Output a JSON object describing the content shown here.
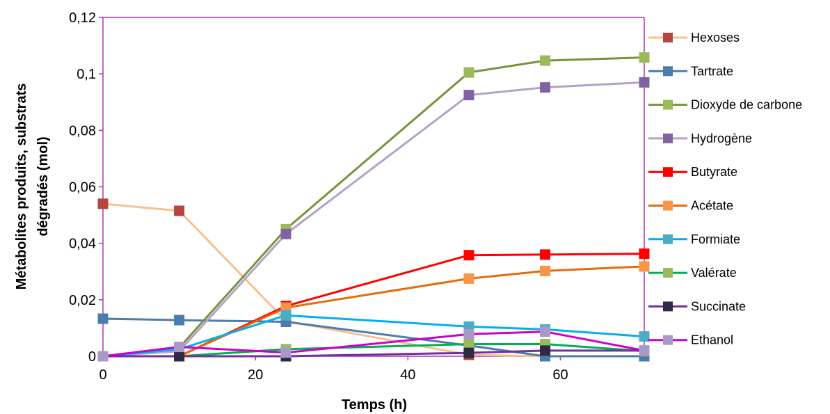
{
  "chart_data": {
    "type": "line",
    "title": "",
    "xlabel": "Temps (h)",
    "ylabel": "Métabolites produits, substrats dégradés (mol)",
    "ylabel_lines": [
      "Métabolites produits, substrats",
      "dégradés (mol)"
    ],
    "xlim": [
      0,
      71
    ],
    "ylim": [
      0,
      0.12
    ],
    "x_ticks": [
      0,
      20,
      40,
      60
    ],
    "x_tick_labels": [
      "0",
      "20",
      "40",
      "60"
    ],
    "y_ticks": [
      0,
      0.02,
      0.04,
      0.06,
      0.08,
      0.1,
      0.12
    ],
    "y_tick_labels": [
      "0",
      "0,02",
      "0,04",
      "0,06",
      "0,08",
      "0,1",
      "0,12"
    ],
    "grid": false,
    "legend_position": "right",
    "x": [
      0,
      10,
      24,
      48,
      58,
      71
    ],
    "series": [
      {
        "name": "Hexoses",
        "line_color": "#F9C08F",
        "marker_color": "#B5453F",
        "values": [
          0.054,
          0.0515,
          0.0125,
          0.0005,
          0,
          0
        ]
      },
      {
        "name": "Tartrate",
        "line_color": "#4A7DAC",
        "marker_color": "#4A7DAC",
        "values": [
          0.0133,
          0.0128,
          0.0122,
          0.0038,
          0,
          0
        ]
      },
      {
        "name": "Dioxyde de carbone",
        "line_color": "#77933C",
        "marker_color": "#9BBB59",
        "values": [
          0,
          0.003,
          0.045,
          0.1005,
          0.1047,
          0.1058
        ]
      },
      {
        "name": "Hydrogène",
        "line_color": "#B3A2C7",
        "marker_color": "#8064A2",
        "values": [
          0,
          0.0018,
          0.0433,
          0.0925,
          0.0952,
          0.097
        ]
      },
      {
        "name": "Butyrate",
        "line_color": "#FF0000",
        "marker_color": "#FF0000",
        "values": [
          0,
          0,
          0.0178,
          0.0358,
          0.036,
          0.0363
        ]
      },
      {
        "name": "Acétate",
        "line_color": "#E46C0A",
        "marker_color": "#F79646",
        "values": [
          0,
          0,
          0.0172,
          0.0275,
          0.0302,
          0.0318
        ]
      },
      {
        "name": "Formiate",
        "line_color": "#00B0F0",
        "marker_color": "#4BACC6",
        "values": [
          0,
          0.0025,
          0.0145,
          0.0105,
          0.0095,
          0.007
        ]
      },
      {
        "name": "Valérate",
        "line_color": "#00B050",
        "marker_color": "#9BBB59",
        "values": [
          0,
          0,
          0.0025,
          0.0043,
          0.0043,
          0.0018
        ]
      },
      {
        "name": "Succinate",
        "line_color": "#7030A0",
        "marker_color": "#2E2A45",
        "values": [
          0,
          0,
          0,
          0.0012,
          0.002,
          0.002
        ]
      },
      {
        "name": "Ethanol",
        "line_color": "#CC00CC",
        "marker_color": "#A89AC8",
        "values": [
          0,
          0.0033,
          0.0013,
          0.0078,
          0.0087,
          0.002
        ]
      }
    ]
  }
}
